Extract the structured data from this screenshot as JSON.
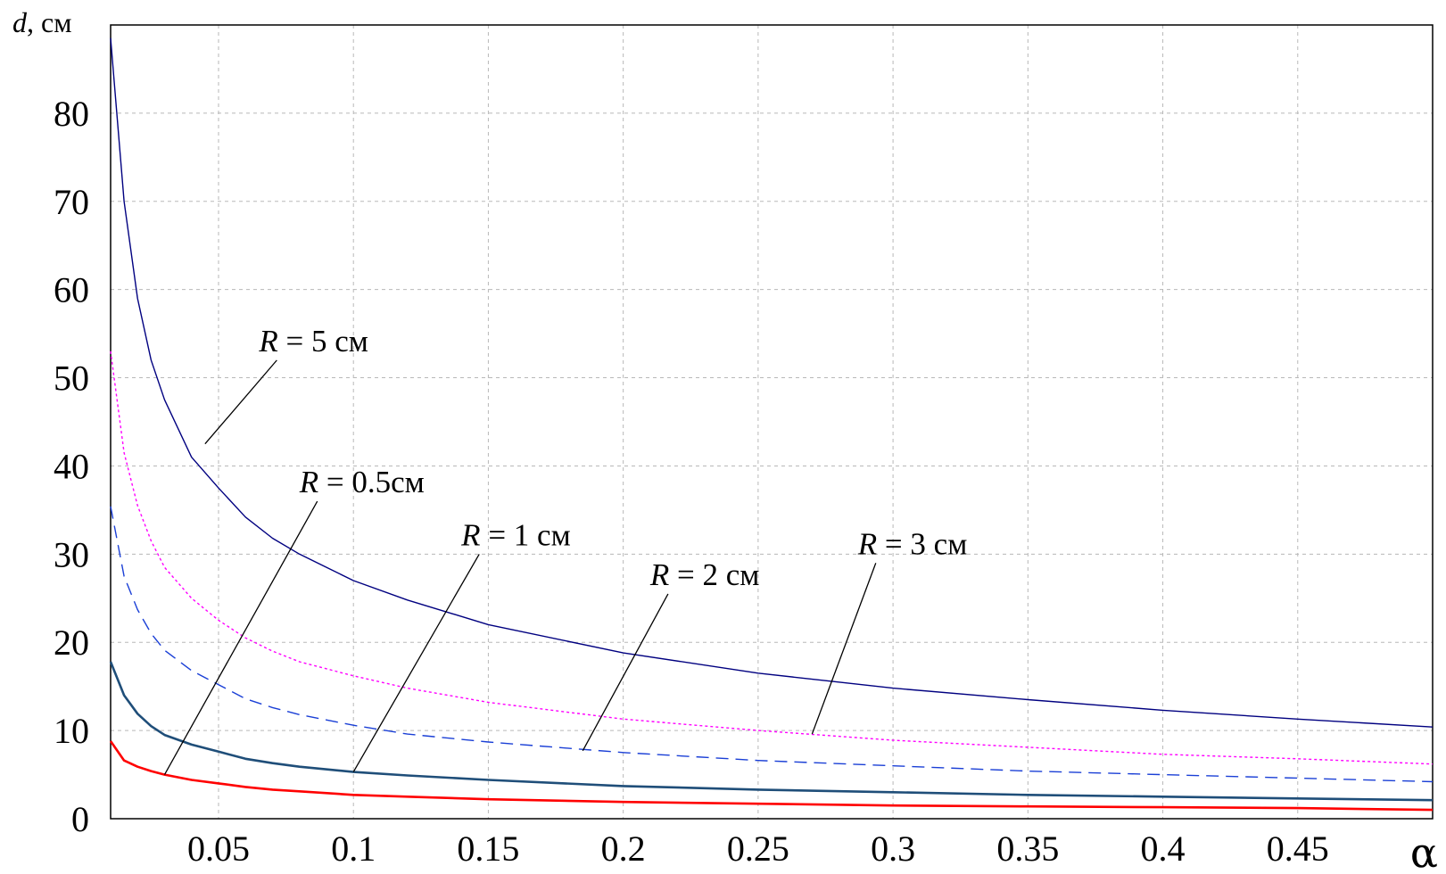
{
  "chart_data": {
    "type": "line",
    "ylabel_var": "d",
    "ylabel_unit": ", см",
    "xlabel": "α",
    "xlim": [
      0.01,
      0.5
    ],
    "ylim": [
      0,
      90
    ],
    "grid": true,
    "x_ticks": [
      "0.05",
      "0.1",
      "0.15",
      "0.2",
      "0.25",
      "0.3",
      "0.35",
      "0.4",
      "0.45"
    ],
    "x_tick_values": [
      0.05,
      0.1,
      0.15,
      0.2,
      0.25,
      0.3,
      0.35,
      0.4,
      0.45
    ],
    "y_ticks": [
      "0",
      "10",
      "20",
      "30",
      "40",
      "50",
      "60",
      "70",
      "80"
    ],
    "y_tick_values": [
      0,
      10,
      20,
      30,
      40,
      50,
      60,
      70,
      80
    ],
    "x": [
      0.01,
      0.015,
      0.02,
      0.025,
      0.03,
      0.04,
      0.05,
      0.06,
      0.07,
      0.08,
      0.1,
      0.12,
      0.15,
      0.2,
      0.25,
      0.3,
      0.35,
      0.4,
      0.45,
      0.5
    ],
    "series": [
      {
        "name": "R = 0.5 см",
        "color": "#ff0000",
        "style": "solid",
        "width": 2.6,
        "values": [
          8.8,
          6.6,
          5.9,
          5.4,
          5.0,
          4.4,
          4.0,
          3.6,
          3.3,
          3.1,
          2.7,
          2.5,
          2.2,
          1.9,
          1.7,
          1.5,
          1.4,
          1.3,
          1.2,
          1.0
        ]
      },
      {
        "name": "R = 1 см",
        "color": "#1f4e79",
        "style": "solid",
        "width": 2.6,
        "values": [
          17.8,
          14.0,
          11.9,
          10.5,
          9.5,
          8.4,
          7.6,
          6.8,
          6.3,
          5.9,
          5.3,
          4.9,
          4.4,
          3.7,
          3.3,
          3.0,
          2.7,
          2.5,
          2.3,
          2.1
        ]
      },
      {
        "name": "R = 2 см",
        "color": "#1a3fd6",
        "style": "dashed",
        "width": 1.4,
        "values": [
          35.4,
          27.5,
          23.7,
          21.0,
          19.1,
          16.8,
          15.2,
          13.6,
          12.6,
          11.8,
          10.6,
          9.6,
          8.7,
          7.5,
          6.6,
          6.0,
          5.4,
          5.0,
          4.6,
          4.2
        ]
      },
      {
        "name": "R = 3 см",
        "color": "#ff00ff",
        "style": "dotted",
        "width": 1.4,
        "values": [
          53.0,
          41.5,
          35.5,
          31.5,
          28.5,
          25.0,
          22.5,
          20.5,
          19.0,
          17.8,
          16.2,
          14.8,
          13.2,
          11.3,
          10.0,
          8.9,
          8.1,
          7.3,
          6.8,
          6.2
        ]
      },
      {
        "name": "R = 5 см",
        "color": "#000080",
        "style": "solid",
        "width": 1.4,
        "values": [
          88.5,
          70.0,
          59.0,
          52.0,
          47.5,
          41.0,
          37.5,
          34.2,
          31.8,
          30.0,
          27.0,
          24.8,
          22.0,
          18.8,
          16.5,
          14.8,
          13.5,
          12.3,
          11.3,
          10.4
        ]
      }
    ],
    "annotations": [
      {
        "var": "R",
        "text": "= 5 см",
        "label_xy": [
          0.065,
          53
        ],
        "arrow_to": [
          0.045,
          42.5
        ]
      },
      {
        "var": "R",
        "text": "= 0.5см",
        "label_xy": [
          0.08,
          37
        ],
        "arrow_to": [
          0.03,
          5.0
        ]
      },
      {
        "var": "R",
        "text": "= 1 см",
        "label_xy": [
          0.14,
          31
        ],
        "arrow_to": [
          0.1,
          5.3
        ]
      },
      {
        "var": "R",
        "text": "= 2 см",
        "label_xy": [
          0.21,
          26.5
        ],
        "arrow_to": [
          0.185,
          7.7
        ]
      },
      {
        "var": "R",
        "text": "= 3 см",
        "label_xy": [
          0.287,
          30
        ],
        "arrow_to": [
          0.27,
          9.6
        ]
      }
    ]
  }
}
